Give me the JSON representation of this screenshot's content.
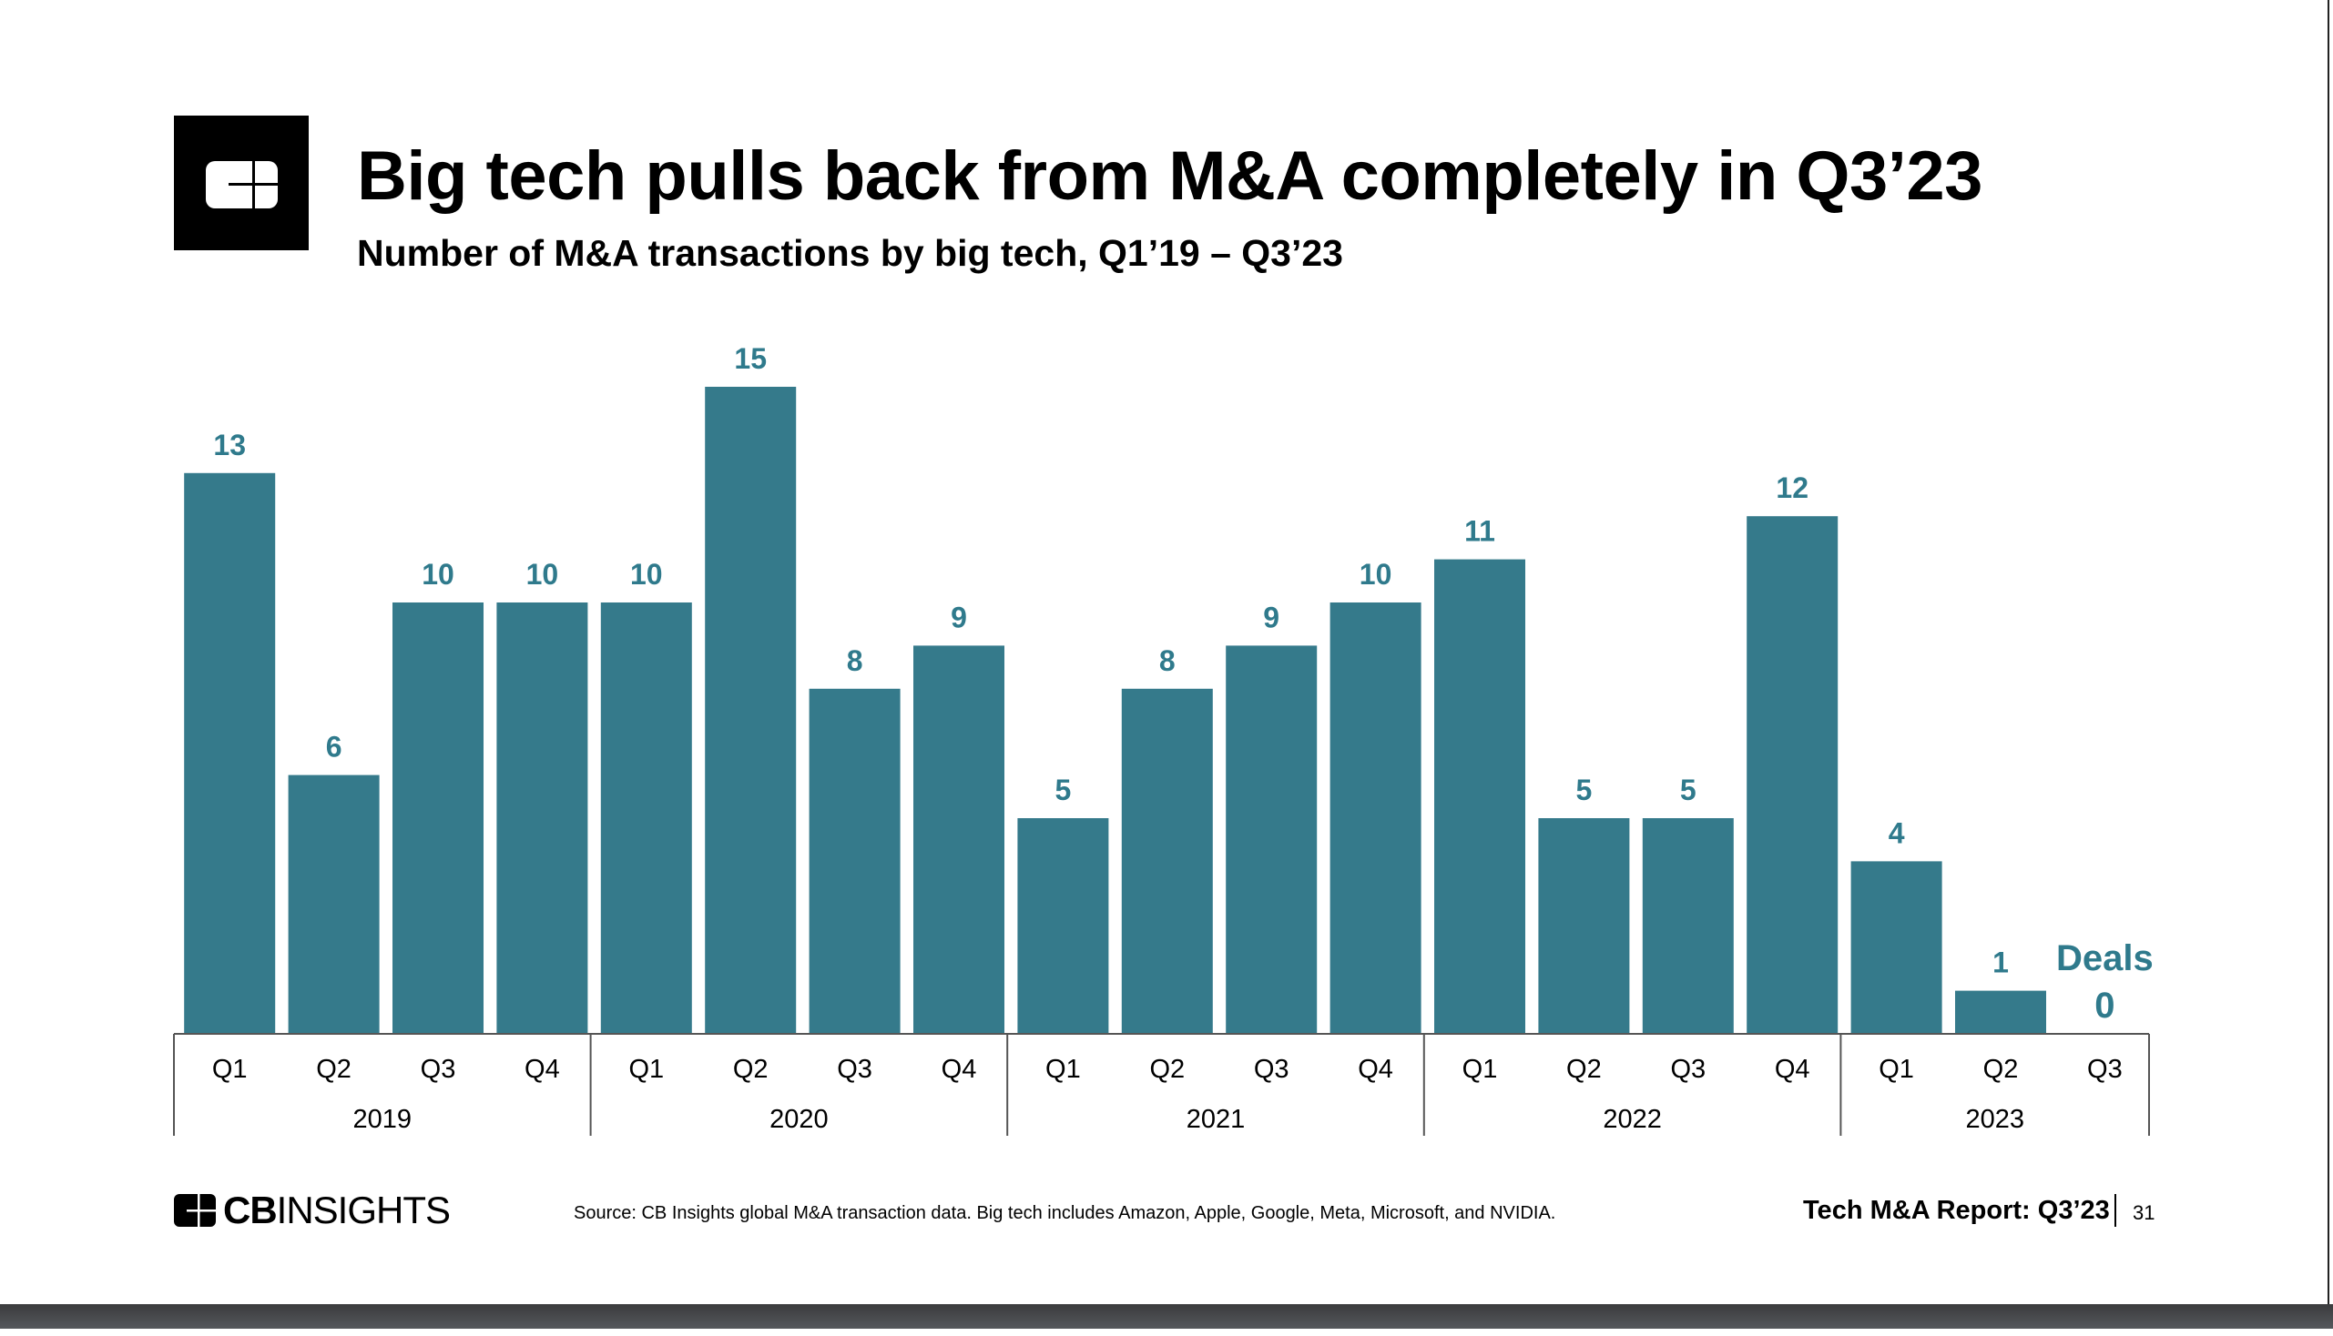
{
  "header": {
    "title": "Big tech pulls back from M&A completely in Q3’23",
    "subtitle": "Number of M&A transactions by big tech, Q1’19 – Q3’23",
    "logo": "CB"
  },
  "chart_data": {
    "type": "bar",
    "title": "Big tech pulls back from M&A completely in Q3’23",
    "subtitle": "Number of M&A transactions by big tech, Q1’19 – Q3’23",
    "categories": [
      "Q1",
      "Q2",
      "Q3",
      "Q4",
      "Q1",
      "Q2",
      "Q3",
      "Q4",
      "Q1",
      "Q2",
      "Q3",
      "Q4",
      "Q1",
      "Q2",
      "Q3",
      "Q4",
      "Q1",
      "Q2",
      "Q3"
    ],
    "groups": [
      {
        "label": "2019",
        "count": 4
      },
      {
        "label": "2020",
        "count": 4
      },
      {
        "label": "2021",
        "count": 4
      },
      {
        "label": "2022",
        "count": 4
      },
      {
        "label": "2023",
        "count": 3
      }
    ],
    "series": [
      {
        "name": "Deals",
        "values": [
          13,
          6,
          10,
          10,
          10,
          15,
          8,
          9,
          5,
          8,
          9,
          10,
          11,
          5,
          5,
          12,
          4,
          1,
          0
        ]
      }
    ],
    "ylim": [
      0,
      15
    ],
    "grid": false,
    "color": "#357a8b",
    "label_color": "#2f7a8c"
  },
  "footer": {
    "brand": "CBINSIGHTS",
    "brand_bold": "CB",
    "brand_light": "INSIGHTS",
    "source": "Source: CB Insights global M&A transaction data. Big tech includes Amazon, Apple, Google, Meta, Microsoft, and NVIDIA.",
    "report": "Tech M&A Report: Q3’23",
    "page": "31"
  }
}
